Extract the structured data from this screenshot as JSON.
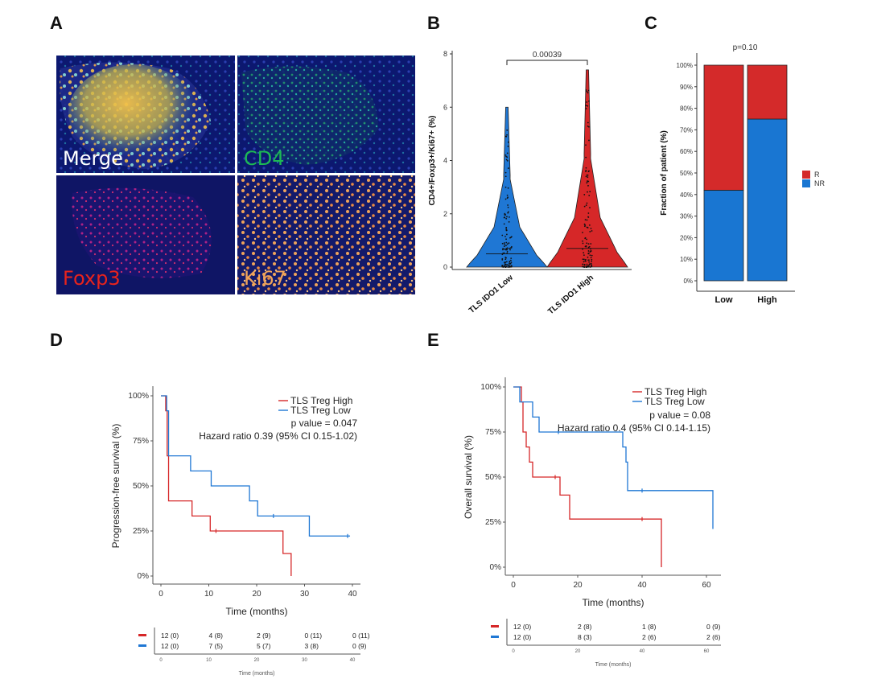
{
  "colors": {
    "red": "#d62728",
    "blue": "#1f77d4",
    "bar_red": "#d42a2a",
    "bar_blue": "#1976d2",
    "micro_bg": "#0b1a6a",
    "merge_label": "#ffffff",
    "cd4_label": "#1db954",
    "foxp3_label": "#e8231c",
    "ki67_label": "#f0a45a"
  },
  "panels": {
    "A": {
      "letter": "A",
      "images": [
        {
          "label": "Merge",
          "icon": "microscopy-merge-image"
        },
        {
          "label": "CD4",
          "icon": "microscopy-cd4-image"
        },
        {
          "label": "Foxp3",
          "icon": "microscopy-foxp3-image"
        },
        {
          "label": "Ki67",
          "icon": "microscopy-ki67-image"
        }
      ]
    },
    "B": {
      "letter": "B"
    },
    "C": {
      "letter": "C"
    },
    "D": {
      "letter": "D"
    },
    "E": {
      "letter": "E"
    }
  },
  "chart_data": [
    {
      "id": "B",
      "type": "violin",
      "ylabel": "CD4+/Foxp3+/Ki67+ (%)",
      "ylim": [
        0,
        8
      ],
      "yticks": [
        0,
        2,
        4,
        6,
        8
      ],
      "categories": [
        "TLS IDO1 Low",
        "TLS IDO1 High"
      ],
      "series": [
        {
          "category": "TLS IDO1 Low",
          "color": "#1f77d4",
          "max": 6.0,
          "median": 0.5
        },
        {
          "category": "TLS IDO1 High",
          "color": "#d62728",
          "max": 7.4,
          "median": 0.7
        }
      ],
      "comparison_p": "0.00039"
    },
    {
      "id": "C",
      "type": "bar",
      "stacked": true,
      "title": "p=0.10",
      "ylabel": "Fraction of patient (%)",
      "ylim": [
        0,
        100
      ],
      "yticks": [
        "0%",
        "10%",
        "20%",
        "30%",
        "40%",
        "50%",
        "60%",
        "70%",
        "80%",
        "90%",
        "100%"
      ],
      "categories": [
        "Low",
        "High"
      ],
      "series": [
        {
          "name": "NR",
          "color": "#1976d2",
          "values": [
            42,
            75
          ]
        },
        {
          "name": "R",
          "color": "#d42a2a",
          "values": [
            58,
            25
          ]
        }
      ],
      "legend": [
        "R",
        "NR"
      ],
      "legend_position": "right"
    },
    {
      "id": "D",
      "type": "line",
      "subtype": "kaplan-meier",
      "xlabel": "Time (months)",
      "ylabel": "Progression-free survival (%)",
      "xlim": [
        0,
        40
      ],
      "ylim": [
        0,
        1
      ],
      "xticks": [
        "0",
        "10",
        "20",
        "30",
        "40"
      ],
      "yticks": [
        "0%",
        "25%",
        "50%",
        "75%",
        "100%"
      ],
      "legend": [
        "TLS Treg High",
        "TLS Treg Low"
      ],
      "legend_position": "top-right",
      "p_value": "p value = 0.047",
      "hazard_ratio": "Hazard ratio 0.39 (95% CI 0.15-1.02)",
      "series": [
        {
          "name": "TLS Treg High",
          "color": "#d62728",
          "steps": [
            [
              0,
              1.0
            ],
            [
              1,
              0.917
            ],
            [
              1.3,
              0.667
            ],
            [
              1.6,
              0.417
            ],
            [
              6.5,
              0.333
            ],
            [
              10.3,
              0.25
            ],
            [
              25.5,
              0.125
            ],
            [
              27.2,
              0.0
            ]
          ],
          "end": 27.2,
          "censors": [
            [
              11.5,
              0.25
            ]
          ]
        },
        {
          "name": "TLS Treg Low",
          "color": "#1f77d4",
          "steps": [
            [
              0,
              1.0
            ],
            [
              1.2,
              0.917
            ],
            [
              1.6,
              0.667
            ],
            [
              6.2,
              0.583
            ],
            [
              10.5,
              0.5
            ],
            [
              18.5,
              0.417
            ],
            [
              20.2,
              0.333
            ],
            [
              31,
              0.222
            ]
          ],
          "end": 39.5,
          "censors": [
            [
              23.5,
              0.333
            ],
            [
              39,
              0.222
            ]
          ]
        }
      ],
      "risk_table": {
        "times": [
          "0",
          "10",
          "20",
          "30",
          "40"
        ],
        "xlabel": "Time (months)",
        "rows": [
          {
            "color": "#d62728",
            "values": [
              "12 (0)",
              "4 (8)",
              "2 (9)",
              "0 (11)",
              "0 (11)"
            ]
          },
          {
            "color": "#1f77d4",
            "values": [
              "12 (0)",
              "7 (5)",
              "5 (7)",
              "3 (8)",
              "0 (9)"
            ]
          }
        ]
      }
    },
    {
      "id": "E",
      "type": "line",
      "subtype": "kaplan-meier",
      "xlabel": "Time (months)",
      "ylabel": "Overall survival (%)",
      "xlim": [
        0,
        62
      ],
      "ylim": [
        0,
        1
      ],
      "xticks": [
        "0",
        "20",
        "40",
        "60"
      ],
      "yticks": [
        "0%",
        "25%",
        "50%",
        "75%",
        "100%"
      ],
      "legend": [
        "TLS Treg High",
        "TLS Treg Low"
      ],
      "legend_position": "top-right",
      "p_value": "p value = 0.08",
      "hazard_ratio": "Hazard ratio 0.4 (95% CI 0.14-1.15)",
      "series": [
        {
          "name": "TLS Treg High",
          "color": "#d62728",
          "steps": [
            [
              0,
              1.0
            ],
            [
              2.5,
              0.917
            ],
            [
              3,
              0.75
            ],
            [
              4,
              0.667
            ],
            [
              5,
              0.583
            ],
            [
              6,
              0.5
            ],
            [
              14.5,
              0.4
            ],
            [
              17.5,
              0.267
            ],
            [
              46,
              0.0
            ]
          ],
          "end": 46,
          "censors": [
            [
              13,
              0.5
            ],
            [
              40,
              0.267
            ]
          ]
        },
        {
          "name": "TLS Treg Low",
          "color": "#1f77d4",
          "steps": [
            [
              0,
              1.0
            ],
            [
              2,
              0.917
            ],
            [
              6,
              0.833
            ],
            [
              8,
              0.75
            ],
            [
              34,
              0.667
            ],
            [
              35,
              0.583
            ],
            [
              35.5,
              0.425
            ],
            [
              62,
              0.212
            ]
          ],
          "end": 62,
          "censors": [
            [
              14,
              0.75
            ],
            [
              40,
              0.425
            ]
          ]
        }
      ],
      "risk_table": {
        "times": [
          "0",
          "20",
          "40",
          "60"
        ],
        "xlabel": "Time (months)",
        "rows": [
          {
            "color": "#d62728",
            "values": [
              "12 (0)",
              "2 (8)",
              "1 (8)",
              "0 (9)"
            ]
          },
          {
            "color": "#1f77d4",
            "values": [
              "12 (0)",
              "8 (3)",
              "2 (6)",
              "2 (6)"
            ]
          }
        ]
      }
    }
  ]
}
